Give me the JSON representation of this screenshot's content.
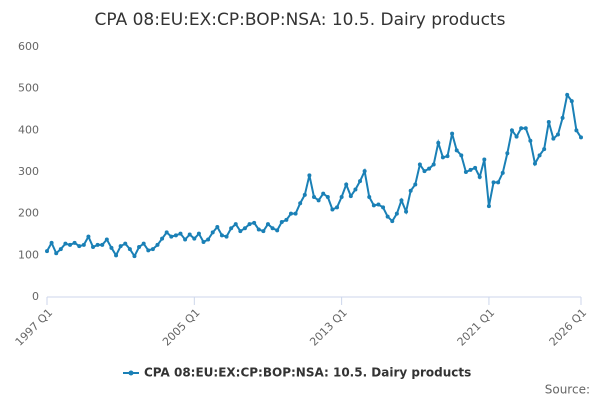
{
  "chart_data": {
    "type": "line",
    "title": "CPA 08:EU:EX:CP:BOP:NSA: 10.5. Dairy products",
    "source": "Source:",
    "categories": [
      "1997 Q1",
      null,
      null,
      null,
      null,
      null,
      null,
      null,
      null,
      null,
      null,
      null,
      null,
      null,
      null,
      null,
      null,
      null,
      null,
      null,
      null,
      null,
      null,
      null,
      null,
      null,
      null,
      null,
      null,
      null,
      null,
      null,
      "2005 Q1",
      null,
      null,
      null,
      null,
      null,
      null,
      null,
      null,
      null,
      null,
      null,
      null,
      null,
      null,
      null,
      null,
      null,
      null,
      null,
      null,
      null,
      null,
      null,
      null,
      null,
      null,
      null,
      null,
      null,
      null,
      null,
      "2013 Q1",
      null,
      null,
      null,
      null,
      null,
      null,
      null,
      null,
      null,
      null,
      null,
      null,
      null,
      null,
      null,
      null,
      null,
      null,
      null,
      null,
      null,
      null,
      null,
      null,
      null,
      null,
      null,
      null,
      null,
      null,
      null,
      "2021 Q1",
      null,
      null,
      null,
      null,
      null,
      null,
      null,
      null,
      null,
      null,
      null,
      null,
      null,
      null,
      null,
      null,
      null,
      null,
      null,
      "2026 Q1"
    ],
    "series": [
      {
        "name": "CPA 08:EU:EX:CP:BOP:NSA: 10.5. Dairy products",
        "color": "#1a80b6",
        "values": [
          110,
          130,
          105,
          115,
          128,
          125,
          130,
          122,
          125,
          145,
          120,
          125,
          125,
          138,
          118,
          100,
          122,
          128,
          115,
          98,
          120,
          128,
          112,
          115,
          125,
          140,
          155,
          145,
          148,
          152,
          138,
          150,
          140,
          152,
          132,
          138,
          155,
          168,
          148,
          145,
          165,
          175,
          158,
          165,
          175,
          178,
          162,
          158,
          175,
          165,
          160,
          180,
          185,
          200,
          200,
          225,
          245,
          292,
          240,
          232,
          248,
          240,
          210,
          215,
          240,
          270,
          242,
          258,
          278,
          302,
          240,
          220,
          222,
          215,
          193,
          182,
          200,
          232,
          205,
          255,
          270,
          318,
          302,
          308,
          318,
          370,
          335,
          338,
          392,
          352,
          340,
          300,
          305,
          310,
          288,
          330,
          218,
          275,
          275,
          298,
          345,
          400,
          385,
          405,
          405,
          375,
          320,
          340,
          355,
          420,
          380,
          390,
          430,
          485,
          470,
          400,
          383
        ]
      }
    ],
    "ylim": [
      0,
      600
    ],
    "yticks": [
      0,
      100,
      200,
      300,
      400,
      500,
      600
    ],
    "grid": false
  }
}
